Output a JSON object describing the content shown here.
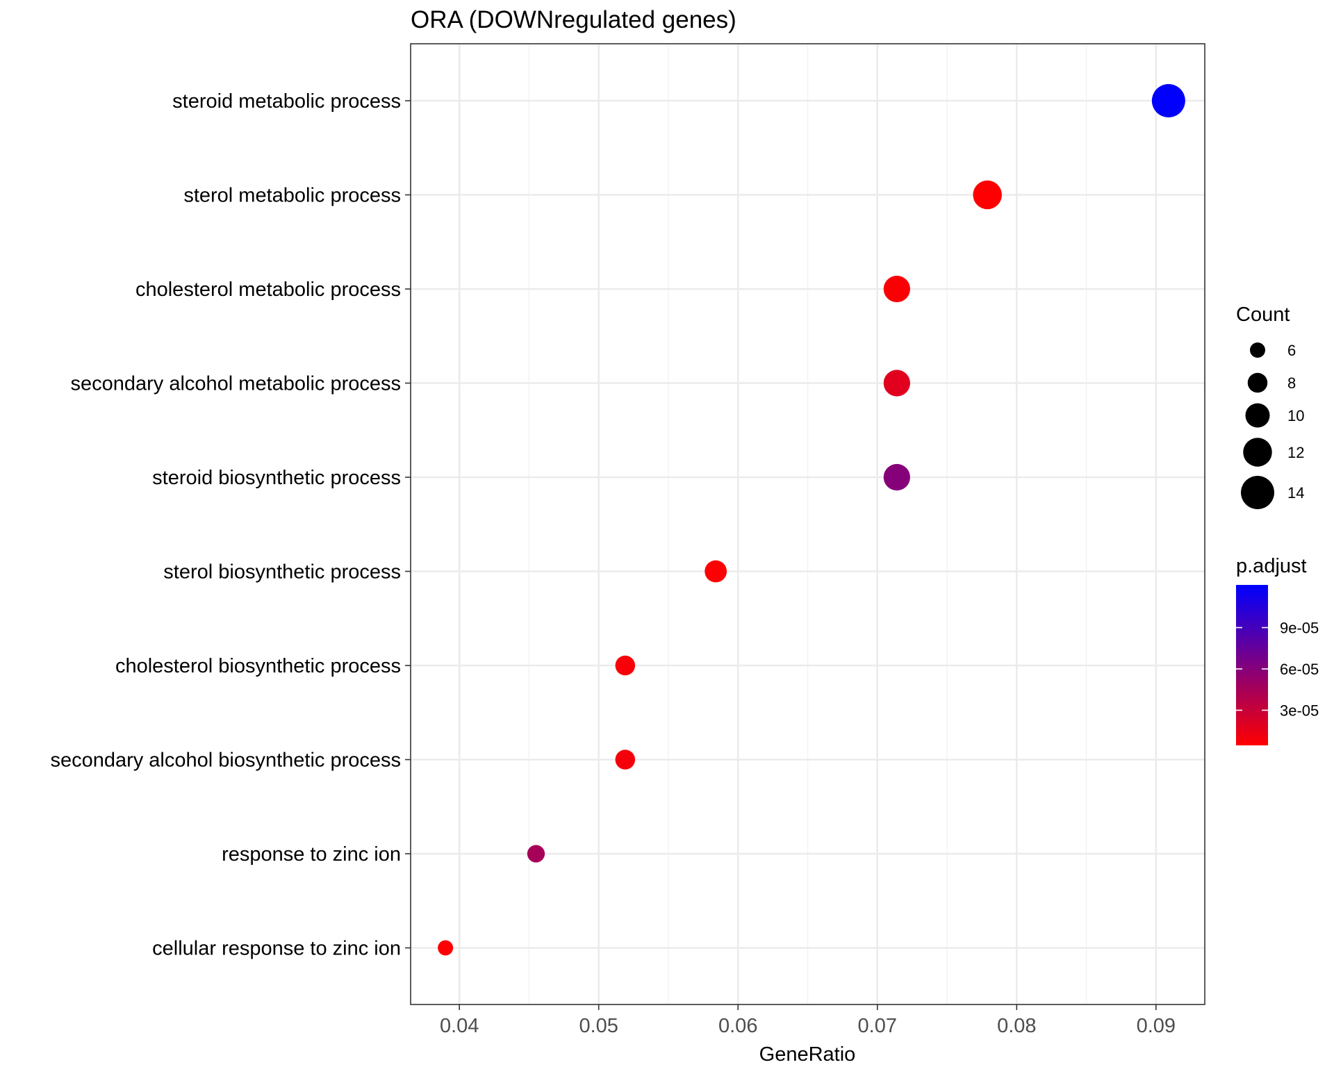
{
  "chart_data": {
    "type": "scatter",
    "title": "ORA (DOWNregulated genes)",
    "xlabel": "GeneRatio",
    "ylabel": "",
    "xlim": [
      0.0365,
      0.0935
    ],
    "xticks": [
      0.04,
      0.05,
      0.06,
      0.07,
      0.08,
      0.09
    ],
    "xtick_labels": [
      "0.04",
      "0.05",
      "0.06",
      "0.07",
      "0.08",
      "0.09"
    ],
    "grid": true,
    "points": [
      {
        "term": "steroid metabolic process",
        "gene_ratio": 0.0909,
        "count": 14,
        "p_adjust": 0.00012
      },
      {
        "term": "sterol metabolic process",
        "gene_ratio": 0.0779,
        "count": 12,
        "p_adjust": 5e-06
      },
      {
        "term": "cholesterol metabolic process",
        "gene_ratio": 0.0714,
        "count": 11,
        "p_adjust": 7e-06
      },
      {
        "term": "secondary alcohol metabolic process",
        "gene_ratio": 0.0714,
        "count": 11,
        "p_adjust": 1.8e-05
      },
      {
        "term": "steroid biosynthetic process",
        "gene_ratio": 0.0714,
        "count": 11,
        "p_adjust": 6e-05
      },
      {
        "term": "sterol biosynthetic process",
        "gene_ratio": 0.0584,
        "count": 9,
        "p_adjust": 6e-06
      },
      {
        "term": "cholesterol biosynthetic process",
        "gene_ratio": 0.0519,
        "count": 8,
        "p_adjust": 8e-06
      },
      {
        "term": "secondary alcohol biosynthetic process",
        "gene_ratio": 0.0519,
        "count": 8,
        "p_adjust": 9e-06
      },
      {
        "term": "response to zinc ion",
        "gene_ratio": 0.0455,
        "count": 7,
        "p_adjust": 4.5e-05
      },
      {
        "term": "cellular response to zinc ion",
        "gene_ratio": 0.039,
        "count": 6,
        "p_adjust": 6e-06
      }
    ],
    "legend": {
      "placement": "right",
      "size": {
        "title": "Count",
        "values": [
          6,
          8,
          10,
          12,
          14
        ],
        "labels": [
          "6",
          "8",
          "10",
          "12",
          "14"
        ]
      },
      "color": {
        "title": "p.adjust",
        "range": [
          4.5e-06,
          0.000121
        ],
        "low_color": "#ff0000",
        "high_color": "#0000ff",
        "ticks": [
          3e-05,
          6e-05,
          9e-05
        ],
        "labels": [
          "3e-05",
          "6e-05",
          "9e-05"
        ]
      }
    }
  }
}
